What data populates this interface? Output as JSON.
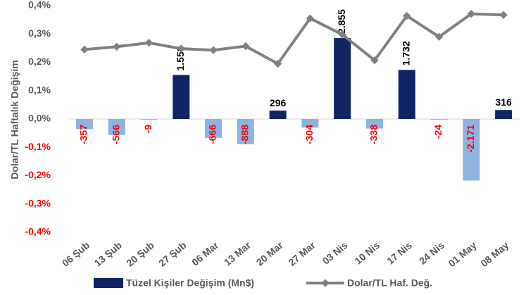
{
  "chart_data": {
    "type": "bar_line",
    "y_axis_label": "Dolar/TL Haftalık Değişim",
    "categories": [
      "06 Şub",
      "13 Şub",
      "20 Şub",
      "27 Şub",
      "06 Mar",
      "13 Mar",
      "20 Mar",
      "27 Mar",
      "03 Nis",
      "10 Nis",
      "17 Nis",
      "24 Nis",
      "01 May",
      "08 May"
    ],
    "ylim": [
      -0.4,
      0.4
    ],
    "yticks": [
      {
        "value": 0.4,
        "label": "0,4%"
      },
      {
        "value": 0.3,
        "label": "0,3%"
      },
      {
        "value": 0.2,
        "label": "0,2%"
      },
      {
        "value": 0.1,
        "label": "0,1%"
      },
      {
        "value": 0,
        "label": "0,0%"
      },
      {
        "value": -0.1,
        "label": "-0,1%"
      },
      {
        "value": -0.2,
        "label": "-0,2%"
      },
      {
        "value": -0.3,
        "label": "-0,3%"
      },
      {
        "value": -0.4,
        "label": "-0,4%"
      }
    ],
    "y2lim": [
      -4000,
      4000
    ],
    "series": [
      {
        "name": "Tüzel Kişiler Değişim (Mn$)",
        "type": "bar",
        "axis": "y2",
        "color": "#0f2462",
        "negative_color": "#8db3e2",
        "label_color": "#000000",
        "negative_label_color": "#ff0000",
        "values": [
          -357,
          -566,
          -9,
          1553,
          -666,
          -888,
          296,
          -304,
          2855,
          -338,
          1732,
          -24,
          -2171,
          316
        ],
        "value_labels": [
          "-357",
          "-566",
          "-9",
          "1.553",
          "-666",
          "-888",
          "296",
          "-304",
          "2.855",
          "-338",
          "1.732",
          "-24",
          "-2.171",
          "316"
        ]
      },
      {
        "name": "Dolar/TL Haf. Değ.",
        "type": "line",
        "axis": "y",
        "color": "#808080",
        "values": [
          0.245,
          0.255,
          0.269,
          0.248,
          0.243,
          0.257,
          0.195,
          0.355,
          0.298,
          0.207,
          0.364,
          0.29,
          0.371,
          0.367
        ]
      }
    ]
  }
}
